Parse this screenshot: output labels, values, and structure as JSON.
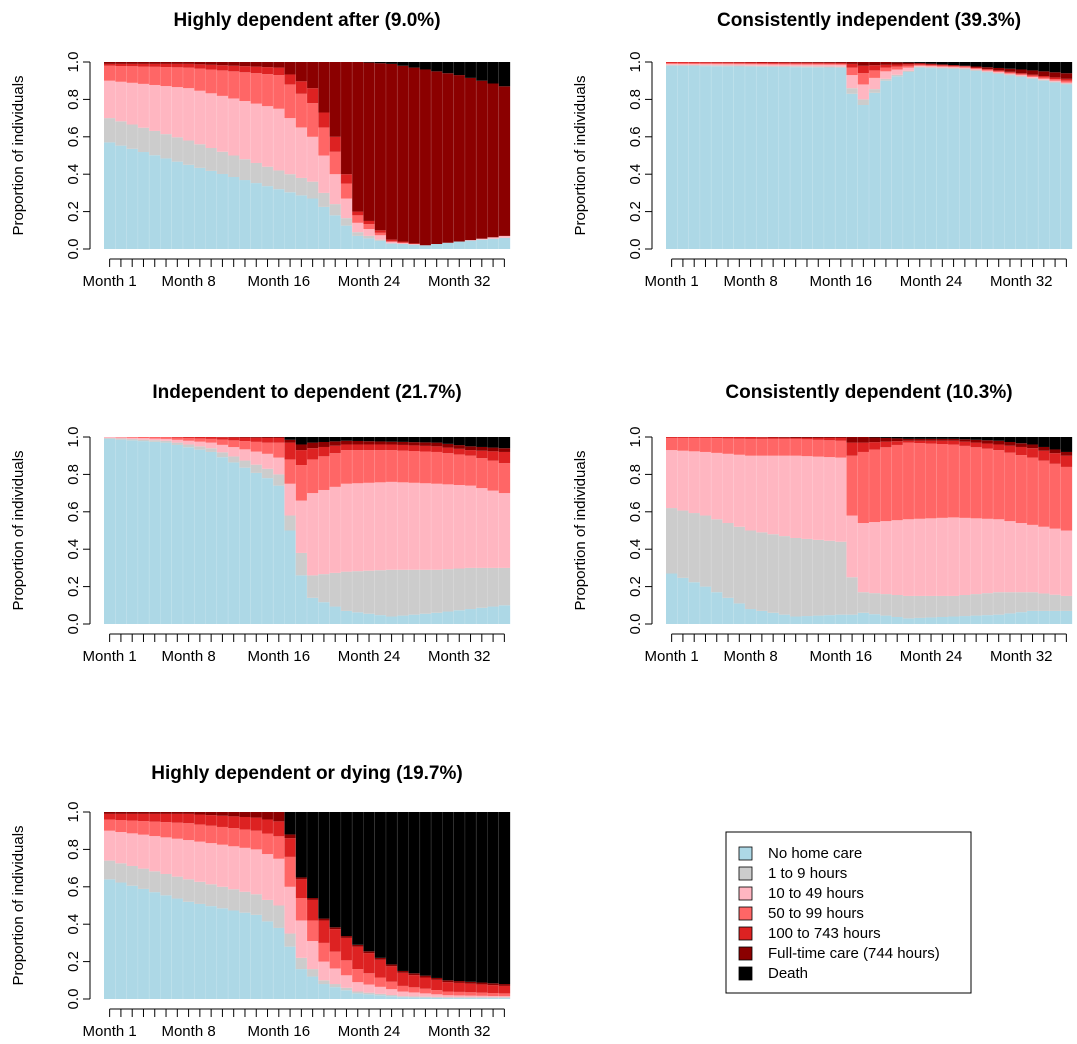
{
  "chart_data": {
    "type": "area",
    "subtype": "state-distribution-stacked-bar",
    "ylabel": "Proportion of individuals",
    "ylim": [
      0,
      1
    ],
    "y_ticks": [
      "0.0",
      "0.2",
      "0.4",
      "0.6",
      "0.8",
      "1.0"
    ],
    "months": [
      1,
      2,
      3,
      4,
      5,
      6,
      7,
      8,
      9,
      10,
      11,
      12,
      13,
      14,
      15,
      16,
      17,
      18,
      19,
      20,
      21,
      22,
      23,
      24,
      25,
      26,
      27,
      28,
      29,
      30,
      31,
      32,
      33,
      34,
      35,
      36
    ],
    "x_tick_labels": [
      {
        "month": 1,
        "label": "Month 1"
      },
      {
        "month": 8,
        "label": "Month 8"
      },
      {
        "month": 16,
        "label": "Month 16"
      },
      {
        "month": 24,
        "label": "Month 24"
      },
      {
        "month": 32,
        "label": "Month 32"
      }
    ],
    "states": [
      {
        "name": "No home care",
        "color": "#add8e6"
      },
      {
        "name": "1 to 9 hours",
        "color": "#cccccc"
      },
      {
        "name": "10 to 49 hours",
        "color": "#ffb6c1"
      },
      {
        "name": "50 to 99 hours",
        "color": "#ff6666"
      },
      {
        "name": "100 to 743 hours",
        "color": "#dd2222"
      },
      {
        "name": "Full-time care (744 hours)",
        "color": "#8b0000"
      },
      {
        "name": "Death",
        "color": "#000000"
      }
    ],
    "legend_position": "bottom-right",
    "panels": [
      {
        "title": "Highly dependent after (9.0%)",
        "cumulative_keypoints": [
          [
            1,
            0.57,
            0.7,
            0.9,
            0.98,
            0.99,
            1.0
          ],
          [
            8,
            0.45,
            0.58,
            0.86,
            0.97,
            0.99,
            1.0
          ],
          [
            16,
            0.32,
            0.42,
            0.75,
            0.93,
            0.97,
            1.0
          ],
          [
            19,
            0.27,
            0.36,
            0.6,
            0.78,
            0.86,
            1.0
          ],
          [
            21,
            0.18,
            0.24,
            0.4,
            0.52,
            0.6,
            1.0
          ],
          [
            23,
            0.07,
            0.09,
            0.14,
            0.18,
            0.2,
            1.0
          ],
          [
            26,
            0.03,
            0.03,
            0.04,
            0.04,
            0.05,
            0.99
          ],
          [
            29,
            0.02,
            0.02,
            0.02,
            0.02,
            0.02,
            0.96
          ],
          [
            32,
            0.04,
            0.04,
            0.04,
            0.04,
            0.04,
            0.93
          ],
          [
            36,
            0.06,
            0.06,
            0.07,
            0.07,
            0.07,
            0.87
          ]
        ]
      },
      {
        "title": "Consistently independent (39.3%)",
        "cumulative_keypoints": [
          [
            1,
            0.98,
            0.985,
            0.99,
            0.995,
            1.0,
            1.0
          ],
          [
            16,
            0.97,
            0.975,
            0.985,
            0.99,
            0.995,
            1.0
          ],
          [
            17,
            0.83,
            0.86,
            0.93,
            0.97,
            0.99,
            1.0
          ],
          [
            18,
            0.77,
            0.8,
            0.88,
            0.94,
            0.98,
            1.0
          ],
          [
            20,
            0.9,
            0.91,
            0.95,
            0.97,
            0.985,
            1.0
          ],
          [
            23,
            0.97,
            0.975,
            0.98,
            0.985,
            0.99,
            0.995
          ],
          [
            27,
            0.96,
            0.965,
            0.97,
            0.975,
            0.978,
            0.98
          ],
          [
            32,
            0.92,
            0.925,
            0.93,
            0.935,
            0.94,
            0.96
          ],
          [
            36,
            0.88,
            0.885,
            0.89,
            0.9,
            0.91,
            0.94
          ]
        ]
      },
      {
        "title": "Independent to dependent (21.7%)",
        "cumulative_keypoints": [
          [
            1,
            0.99,
            0.995,
            1.0,
            1.0,
            1.0,
            1.0
          ],
          [
            6,
            0.97,
            0.98,
            0.99,
            1.0,
            1.0,
            1.0
          ],
          [
            10,
            0.92,
            0.94,
            0.97,
            0.99,
            1.0,
            1.0
          ],
          [
            15,
            0.78,
            0.83,
            0.91,
            0.97,
            0.995,
            1.0
          ],
          [
            16,
            0.74,
            0.8,
            0.89,
            0.97,
            0.995,
            1.0
          ],
          [
            17,
            0.5,
            0.58,
            0.75,
            0.88,
            0.97,
            0.985
          ],
          [
            18,
            0.26,
            0.38,
            0.66,
            0.85,
            0.93,
            0.96
          ],
          [
            19,
            0.14,
            0.26,
            0.7,
            0.88,
            0.94,
            0.97
          ],
          [
            22,
            0.07,
            0.28,
            0.75,
            0.93,
            0.96,
            0.98
          ],
          [
            26,
            0.04,
            0.29,
            0.76,
            0.93,
            0.96,
            0.975
          ],
          [
            30,
            0.06,
            0.29,
            0.75,
            0.92,
            0.95,
            0.97
          ],
          [
            33,
            0.08,
            0.3,
            0.74,
            0.9,
            0.93,
            0.95
          ],
          [
            36,
            0.1,
            0.3,
            0.7,
            0.86,
            0.92,
            0.94
          ]
        ]
      },
      {
        "title": "Consistently dependent (10.3%)",
        "cumulative_keypoints": [
          [
            1,
            0.27,
            0.62,
            0.93,
            0.995,
            1.0,
            1.0
          ],
          [
            4,
            0.2,
            0.58,
            0.92,
            0.995,
            1.0,
            1.0
          ],
          [
            8,
            0.08,
            0.5,
            0.9,
            0.99,
            1.0,
            1.0
          ],
          [
            12,
            0.04,
            0.46,
            0.9,
            0.99,
            0.995,
            1.0
          ],
          [
            16,
            0.05,
            0.44,
            0.89,
            0.98,
            0.995,
            1.0
          ],
          [
            17,
            0.05,
            0.25,
            0.58,
            0.9,
            0.97,
            1.0
          ],
          [
            18,
            0.06,
            0.17,
            0.54,
            0.92,
            0.97,
            1.0
          ],
          [
            22,
            0.03,
            0.15,
            0.56,
            0.97,
            0.98,
            0.99
          ],
          [
            26,
            0.04,
            0.15,
            0.57,
            0.96,
            0.98,
            0.99
          ],
          [
            30,
            0.05,
            0.17,
            0.56,
            0.93,
            0.96,
            0.98
          ],
          [
            33,
            0.07,
            0.17,
            0.53,
            0.89,
            0.94,
            0.96
          ],
          [
            36,
            0.07,
            0.15,
            0.5,
            0.84,
            0.9,
            0.92
          ]
        ]
      },
      {
        "title": "Highly dependent or dying (19.7%)",
        "cumulative_keypoints": [
          [
            1,
            0.64,
            0.74,
            0.9,
            0.96,
            0.99,
            1.0
          ],
          [
            8,
            0.52,
            0.64,
            0.85,
            0.94,
            0.99,
            1.0
          ],
          [
            14,
            0.45,
            0.56,
            0.8,
            0.9,
            0.97,
            1.0
          ],
          [
            16,
            0.38,
            0.5,
            0.75,
            0.87,
            0.95,
            1.0
          ],
          [
            17,
            0.28,
            0.35,
            0.6,
            0.76,
            0.86,
            0.88
          ],
          [
            18,
            0.16,
            0.22,
            0.42,
            0.54,
            0.64,
            0.65
          ],
          [
            20,
            0.08,
            0.1,
            0.2,
            0.3,
            0.42,
            0.43
          ],
          [
            23,
            0.03,
            0.04,
            0.09,
            0.16,
            0.28,
            0.29
          ],
          [
            27,
            0.01,
            0.015,
            0.04,
            0.07,
            0.14,
            0.15
          ],
          [
            31,
            0.005,
            0.01,
            0.02,
            0.04,
            0.09,
            0.1
          ],
          [
            36,
            0.005,
            0.01,
            0.015,
            0.03,
            0.07,
            0.08
          ]
        ]
      }
    ]
  }
}
